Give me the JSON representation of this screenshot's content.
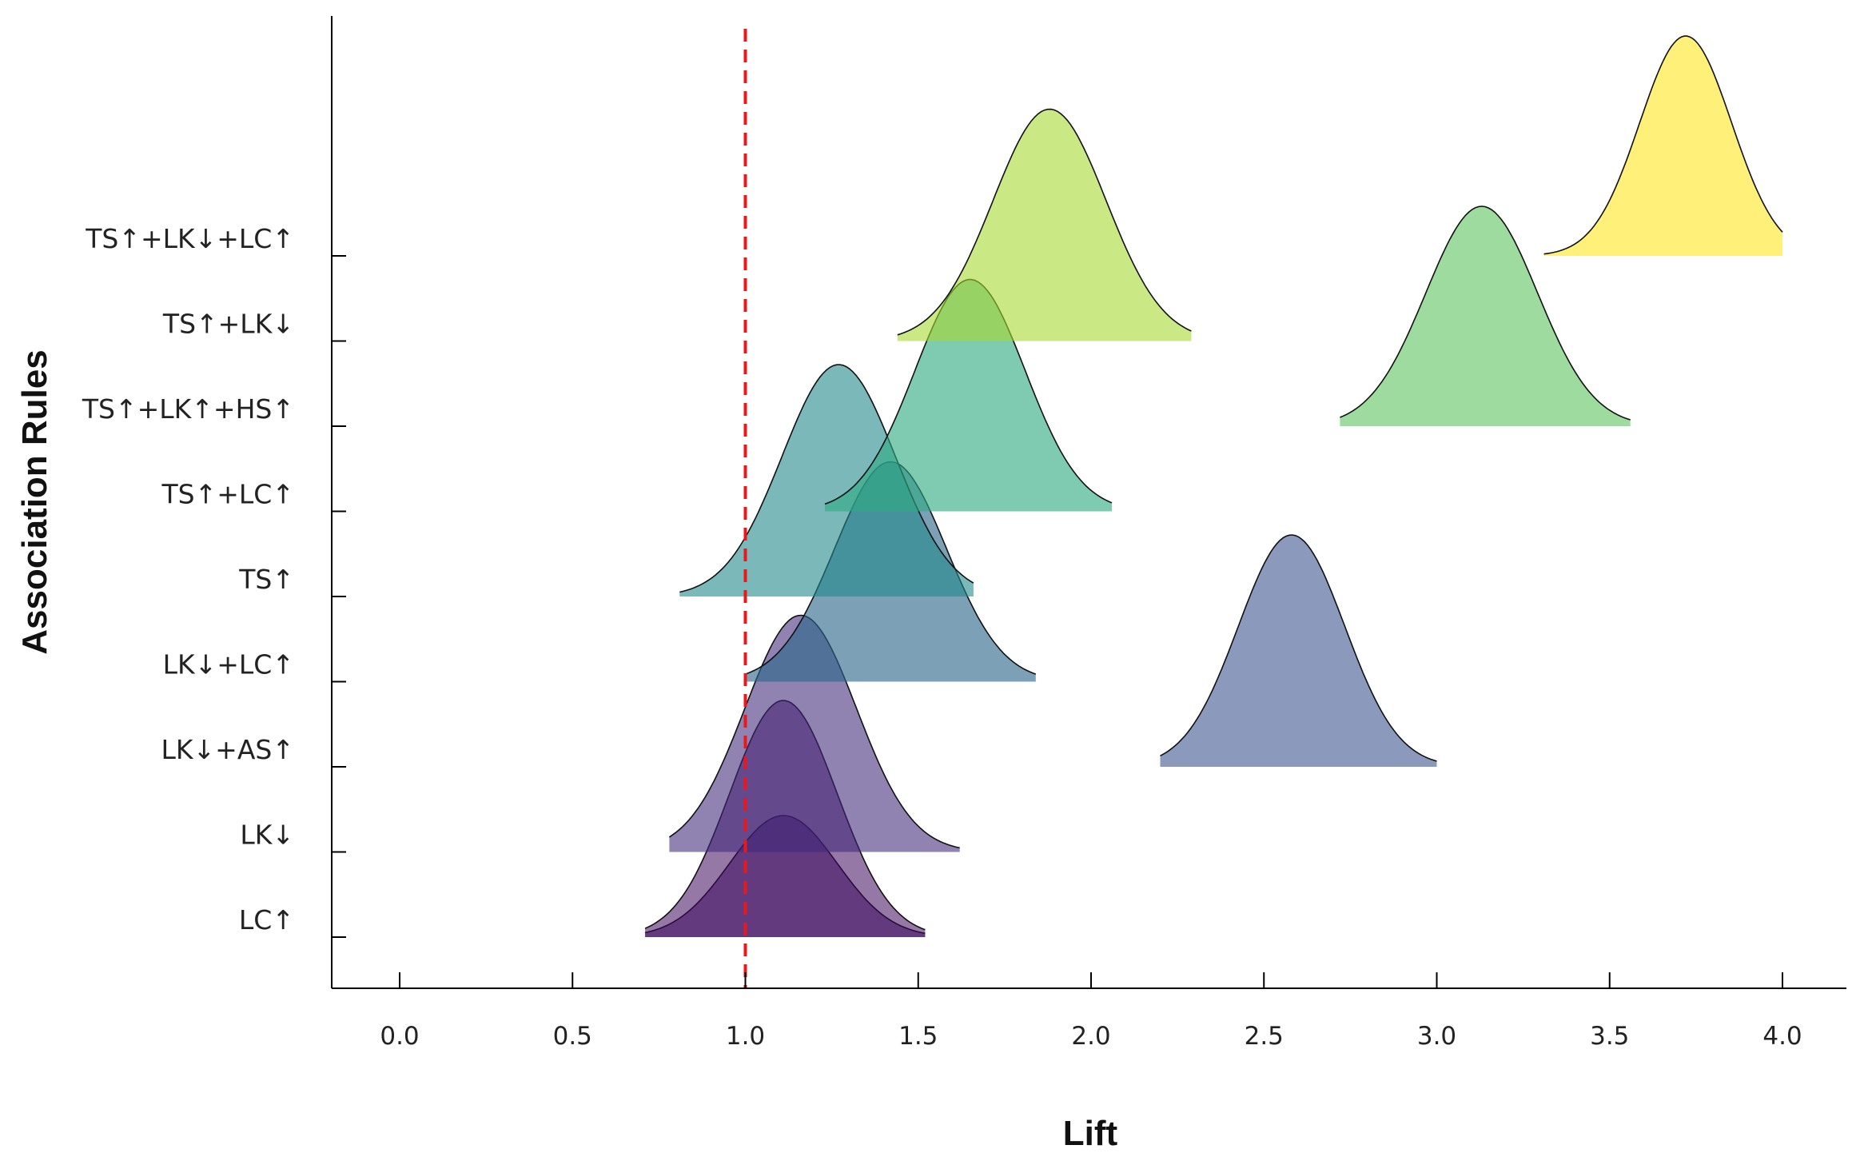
{
  "chart_data": {
    "type": "ridgeline",
    "xlabel": "Lift",
    "ylabel": "Association Rules",
    "xlim": [
      -0.2,
      4.2
    ],
    "xticks": [
      "0.0",
      "0.5",
      "1.0",
      "1.5",
      "2.0",
      "2.5",
      "3.0",
      "3.5",
      "4.0"
    ],
    "xtick_values": [
      0.0,
      0.5,
      1.0,
      1.5,
      2.0,
      2.5,
      3.0,
      3.5,
      4.0
    ],
    "reference_line": {
      "x": 1.0,
      "style": "dashed",
      "color": "#e8191c"
    },
    "grid": false,
    "legend": "none",
    "categories": [
      "LC↑",
      "LK↓",
      "LK↓+AS↑",
      "LK↓+LC↑",
      "TS↑",
      "TS↑+LC↑",
      "TS↑+LK↑+HS↑",
      "TS↑+LK↓",
      "TS↑+LK↓+LC↑"
    ],
    "series": [
      {
        "category": "LC↑",
        "peak": 1.11,
        "min": 0.71,
        "max": 1.52,
        "color": "#482071",
        "opacity": 0.62,
        "height": 1.52
      },
      {
        "category": "LC↑",
        "peak": 1.11,
        "min": 0.71,
        "max": 1.52,
        "color": "#3f0a5c",
        "opacity": 0.55,
        "height": 2.96
      },
      {
        "category": "LK↓",
        "peak": 1.16,
        "min": 0.78,
        "max": 1.62,
        "color": "#3f2878",
        "opacity": 0.58,
        "height": 2.96
      },
      {
        "category": "LK↓+AS↑",
        "peak": 2.58,
        "min": 2.2,
        "max": 3.0,
        "color": "#2f4a88",
        "opacity": 0.56,
        "height": 2.9
      },
      {
        "category": "LK↓+LC↑",
        "peak": 1.42,
        "min": 1.0,
        "max": 1.84,
        "color": "#2c678a",
        "opacity": 0.62,
        "height": 2.75
      },
      {
        "category": "TS↑",
        "peak": 1.27,
        "min": 0.81,
        "max": 1.66,
        "color": "#22888a",
        "opacity": 0.6,
        "height": 2.9
      },
      {
        "category": "TS↑+LC↑",
        "peak": 1.65,
        "min": 1.23,
        "max": 2.06,
        "color": "#2fab82",
        "opacity": 0.62,
        "height": 2.9
      },
      {
        "category": "TS↑+LK↑+HS↑",
        "peak": 3.13,
        "min": 2.72,
        "max": 3.56,
        "color": "#5cc45e",
        "opacity": 0.6,
        "height": 2.75
      },
      {
        "category": "TS↑+LK↓",
        "peak": 1.88,
        "min": 1.44,
        "max": 2.29,
        "color": "#a6d830",
        "opacity": 0.6,
        "height": 2.9
      },
      {
        "category": "TS↑+LK↓+LC↑",
        "peak": 3.72,
        "min": 3.31,
        "max": 4.0,
        "color": "#fde725",
        "opacity": 0.62,
        "height": 2.75
      }
    ]
  }
}
